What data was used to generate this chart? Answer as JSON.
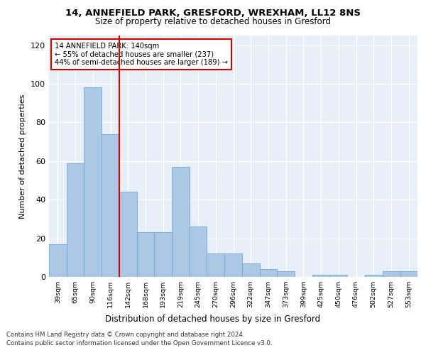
{
  "title1": "14, ANNEFIELD PARK, GRESFORD, WREXHAM, LL12 8NS",
  "title2": "Size of property relative to detached houses in Gresford",
  "xlabel": "Distribution of detached houses by size in Gresford",
  "ylabel": "Number of detached properties",
  "categories": [
    "39sqm",
    "65sqm",
    "90sqm",
    "116sqm",
    "142sqm",
    "168sqm",
    "193sqm",
    "219sqm",
    "245sqm",
    "270sqm",
    "296sqm",
    "322sqm",
    "347sqm",
    "373sqm",
    "399sqm",
    "425sqm",
    "450sqm",
    "476sqm",
    "502sqm",
    "527sqm",
    "553sqm"
  ],
  "values": [
    17,
    59,
    98,
    74,
    44,
    23,
    23,
    57,
    26,
    12,
    12,
    7,
    4,
    3,
    0,
    1,
    1,
    0,
    1,
    3,
    3
  ],
  "bar_color": "#adc8e6",
  "bar_edge_color": "#6aaed6",
  "reference_line_x": 3.5,
  "reference_line_label": "14 ANNEFIELD PARK: 140sqm",
  "annotation_line1": "← 55% of detached houses are smaller (237)",
  "annotation_line2": "44% of semi-detached houses are larger (189) →",
  "annotation_box_color": "#ffffff",
  "annotation_box_edge_color": "#cc0000",
  "vline_color": "#cc0000",
  "ylim": [
    0,
    125
  ],
  "yticks": [
    0,
    20,
    40,
    60,
    80,
    100,
    120
  ],
  "background_color": "#e8eef8",
  "footer1": "Contains HM Land Registry data © Crown copyright and database right 2024.",
  "footer2": "Contains public sector information licensed under the Open Government Licence v3.0."
}
